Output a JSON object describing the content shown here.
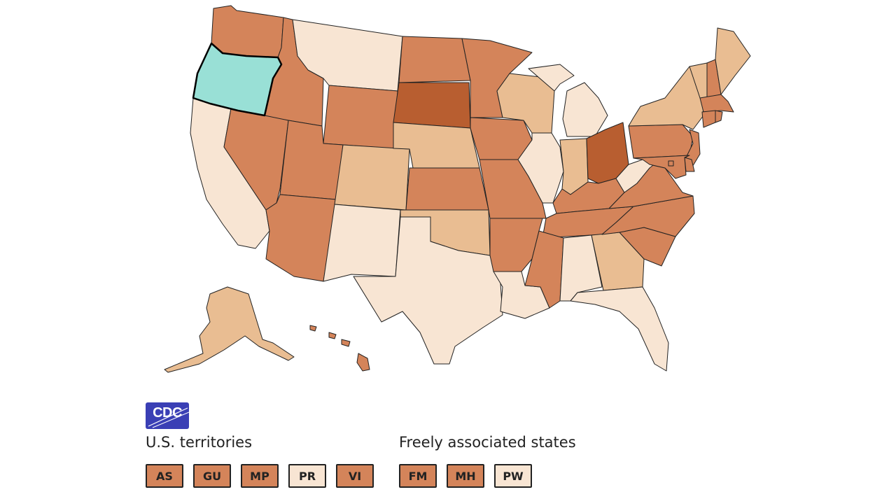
{
  "colors": {
    "level_1": "#f8e5d3",
    "level_2": "#e9bd92",
    "level_3": "#d4845a",
    "level_4": "#b85e30",
    "selected": "#99e0d6"
  },
  "selected_state": "OR",
  "states": {
    "WA": 3,
    "OR": "selected",
    "CA": 1,
    "ID": 3,
    "NV": 3,
    "MT": 1,
    "WY": 3,
    "UT": 3,
    "AZ": 3,
    "CO": 2,
    "NM": 1,
    "ND": 3,
    "SD": 4,
    "NE": 2,
    "KS": 3,
    "OK": 2,
    "TX": 1,
    "MN": 3,
    "IA": 3,
    "MO": 3,
    "AR": 3,
    "LA": 1,
    "WI": 2,
    "MI": 1,
    "IL": 1,
    "IN": 2,
    "OH": 4,
    "KY": 3,
    "TN": 3,
    "MS": 3,
    "AL": 1,
    "GA": 2,
    "FL": 1,
    "SC": 3,
    "NC": 3,
    "VA": 3,
    "WV": 1,
    "PA": 3,
    "NY": 2,
    "VT": 2,
    "NH": 3,
    "ME": 2,
    "MA": 3,
    "CT": 3,
    "RI": 3,
    "NJ": 3,
    "DE": 3,
    "MD": 3,
    "DC": 3,
    "AK": 2,
    "HI": 3
  },
  "logo": {
    "text": "CDC"
  },
  "territories": {
    "heading": "U.S. territories",
    "items": [
      {
        "code": "AS",
        "level": 3
      },
      {
        "code": "GU",
        "level": 3
      },
      {
        "code": "MP",
        "level": 3
      },
      {
        "code": "PR",
        "level": 1
      },
      {
        "code": "VI",
        "level": 3
      }
    ]
  },
  "freely_associated": {
    "heading": "Freely associated states",
    "items": [
      {
        "code": "FM",
        "level": 3
      },
      {
        "code": "MH",
        "level": 3
      },
      {
        "code": "PW",
        "level": 1
      }
    ]
  }
}
